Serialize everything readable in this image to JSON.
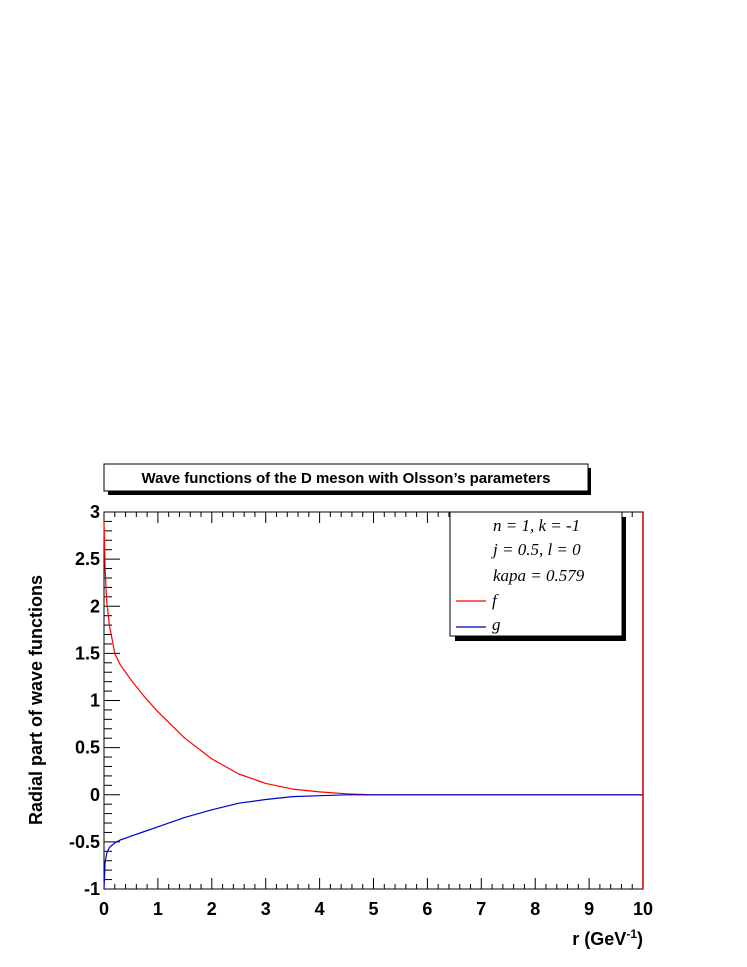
{
  "chart_data": {
    "type": "line",
    "title": "Wave functions of the D meson with Olsson’s parameters",
    "xlabel": "r (GeV",
    "xlabel_sup": "-1",
    "xlabel_close": ")",
    "ylabel": "Radial part of wave functions",
    "xlim": [
      0,
      10
    ],
    "ylim": [
      -1,
      3
    ],
    "x_ticks": [
      "0",
      "1",
      "2",
      "3",
      "4",
      "5",
      "6",
      "7",
      "8",
      "9",
      "10"
    ],
    "y_ticks": [
      "-1",
      "-0.5",
      "0",
      "0.5",
      "1",
      "1.5",
      "2",
      "2.5",
      "3"
    ],
    "grid": false,
    "legend_position": "top-right",
    "legend_text": [
      "n = 1, k = -1",
      "j = 0.5, l = 0",
      "kapa = 0.579"
    ],
    "series": [
      {
        "name": "f",
        "color": "#ff0000",
        "x": [
          0.0,
          0.02,
          0.05,
          0.1,
          0.2,
          0.3,
          0.5,
          0.75,
          1.0,
          1.5,
          2.0,
          2.5,
          3.0,
          3.5,
          4.0,
          4.5,
          5.0,
          5.5,
          6.0,
          7.0,
          8.0,
          9.0,
          10.0
        ],
        "y": [
          2.9,
          2.4,
          2.05,
          1.8,
          1.5,
          1.38,
          1.22,
          1.04,
          0.88,
          0.6,
          0.38,
          0.22,
          0.12,
          0.06,
          0.03,
          0.01,
          0.0,
          0.0,
          0.0,
          0.0,
          0.0,
          0.0,
          0.0
        ]
      },
      {
        "name": "g",
        "color": "#0000cc",
        "x": [
          0.0,
          0.02,
          0.05,
          0.1,
          0.2,
          0.3,
          0.5,
          0.75,
          1.0,
          1.5,
          2.0,
          2.5,
          3.0,
          3.5,
          4.0,
          4.5,
          5.0,
          5.5,
          6.0,
          7.0,
          8.0,
          9.0,
          10.0
        ],
        "y": [
          -1.0,
          -0.72,
          -0.62,
          -0.56,
          -0.51,
          -0.48,
          -0.44,
          -0.39,
          -0.34,
          -0.24,
          -0.16,
          -0.09,
          -0.05,
          -0.02,
          -0.01,
          0.0,
          0.0,
          0.0,
          0.0,
          0.0,
          0.0,
          0.0,
          0.0
        ]
      }
    ]
  }
}
